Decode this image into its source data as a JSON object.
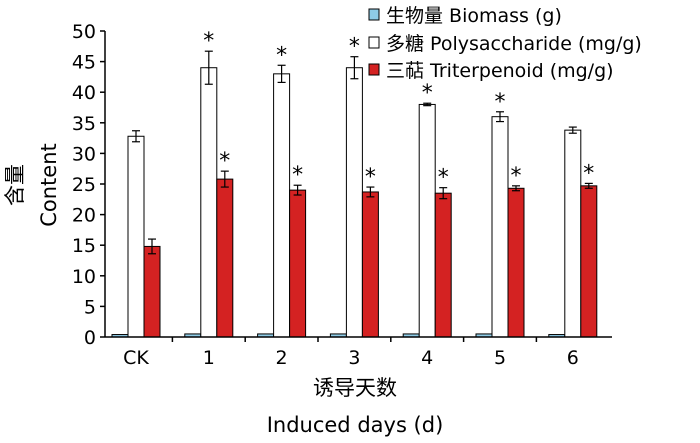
{
  "chart_data": {
    "type": "bar",
    "categories": [
      "CK",
      "1",
      "2",
      "3",
      "4",
      "5",
      "6"
    ],
    "ylim": [
      0,
      50
    ],
    "yticks": [
      0,
      5,
      10,
      15,
      20,
      25,
      30,
      35,
      40,
      45,
      50
    ],
    "ylabel_cn": "含量",
    "ylabel": "Content",
    "xlabel_cn": "诱导天数",
    "xlabel": "Induced days (d)",
    "significance_marker": "*",
    "series": [
      {
        "name": "生物量 Biomass (g)",
        "color": "#8ecbe6",
        "values": [
          0.4,
          0.5,
          0.5,
          0.5,
          0.5,
          0.5,
          0.4
        ],
        "errors": [
          0,
          0,
          0,
          0,
          0,
          0,
          0
        ],
        "significant": [
          false,
          false,
          false,
          false,
          false,
          false,
          false
        ]
      },
      {
        "name": "多糖 Polysaccharide (mg/g)",
        "color": "#ffffff",
        "values": [
          32.8,
          44.0,
          43.0,
          44.0,
          38.0,
          36.0,
          33.8
        ],
        "errors": [
          0.9,
          2.7,
          1.4,
          1.8,
          0.2,
          0.8,
          0.5
        ],
        "significant": [
          false,
          true,
          true,
          true,
          true,
          true,
          false
        ]
      },
      {
        "name": "三萜 Triterpenoid (mg/g)",
        "color": "#d42222",
        "values": [
          14.8,
          25.8,
          24.0,
          23.7,
          23.5,
          24.3,
          24.7
        ],
        "errors": [
          1.2,
          1.3,
          0.8,
          0.8,
          0.9,
          0.4,
          0.4
        ],
        "significant": [
          false,
          true,
          true,
          true,
          true,
          true,
          true
        ]
      }
    ]
  }
}
